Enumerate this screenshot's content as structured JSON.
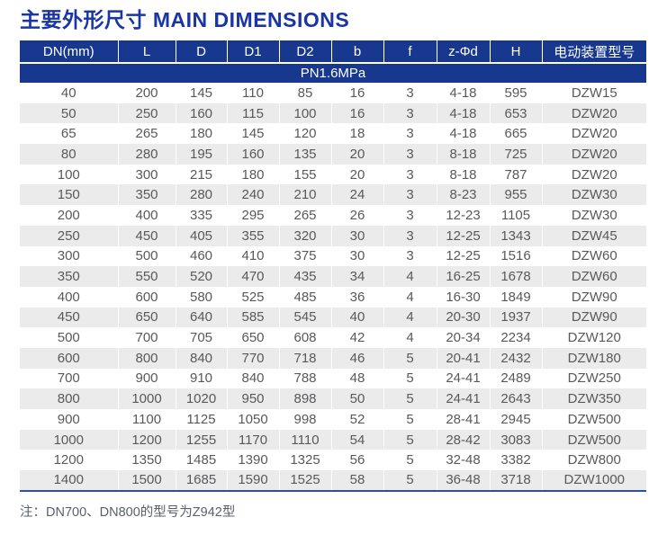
{
  "page": {
    "title": "主要外形尺寸 MAIN DIMENSIONS",
    "note": "注：DN700、DN800的型号为Z942型"
  },
  "table": {
    "columns": [
      "DN(mm)",
      "L",
      "D",
      "D1",
      "D2",
      "b",
      "f",
      "z-Φd",
      "H",
      "电动装置型号"
    ],
    "subheader": "PN1.6MPa",
    "rows": [
      [
        "40",
        "200",
        "145",
        "110",
        "85",
        "16",
        "3",
        "4-18",
        "595",
        "DZW15"
      ],
      [
        "50",
        "250",
        "160",
        "115",
        "100",
        "16",
        "3",
        "4-18",
        "653",
        "DZW20"
      ],
      [
        "65",
        "265",
        "180",
        "145",
        "120",
        "18",
        "3",
        "4-18",
        "665",
        "DZW20"
      ],
      [
        "80",
        "280",
        "195",
        "160",
        "135",
        "20",
        "3",
        "8-18",
        "725",
        "DZW20"
      ],
      [
        "100",
        "300",
        "215",
        "180",
        "155",
        "20",
        "3",
        "8-18",
        "787",
        "DZW20"
      ],
      [
        "150",
        "350",
        "280",
        "240",
        "210",
        "24",
        "3",
        "8-23",
        "955",
        "DZW30"
      ],
      [
        "200",
        "400",
        "335",
        "295",
        "265",
        "26",
        "3",
        "12-23",
        "1105",
        "DZW30"
      ],
      [
        "250",
        "450",
        "405",
        "355",
        "320",
        "30",
        "3",
        "12-25",
        "1343",
        "DZW45"
      ],
      [
        "300",
        "500",
        "460",
        "410",
        "375",
        "30",
        "3",
        "12-25",
        "1516",
        "DZW60"
      ],
      [
        "350",
        "550",
        "520",
        "470",
        "435",
        "34",
        "4",
        "16-25",
        "1678",
        "DZW60"
      ],
      [
        "400",
        "600",
        "580",
        "525",
        "485",
        "36",
        "4",
        "16-30",
        "1849",
        "DZW90"
      ],
      [
        "450",
        "650",
        "640",
        "585",
        "545",
        "40",
        "4",
        "20-30",
        "1937",
        "DZW90"
      ],
      [
        "500",
        "700",
        "705",
        "650",
        "608",
        "42",
        "4",
        "20-34",
        "2234",
        "DZW120"
      ],
      [
        "600",
        "800",
        "840",
        "770",
        "718",
        "46",
        "5",
        "20-41",
        "2432",
        "DZW180"
      ],
      [
        "700",
        "900",
        "910",
        "840",
        "788",
        "48",
        "5",
        "24-41",
        "2489",
        "DZW250"
      ],
      [
        "800",
        "1000",
        "1020",
        "950",
        "898",
        "50",
        "5",
        "24-41",
        "2643",
        "DZW350"
      ],
      [
        "900",
        "1100",
        "1125",
        "1050",
        "998",
        "52",
        "5",
        "28-41",
        "2945",
        "DZW500"
      ],
      [
        "1000",
        "1200",
        "1255",
        "1170",
        "1110",
        "54",
        "5",
        "28-42",
        "3083",
        "DZW500"
      ],
      [
        "1200",
        "1350",
        "1485",
        "1390",
        "1325",
        "56",
        "5",
        "32-48",
        "3382",
        "DZW800"
      ],
      [
        "1400",
        "1500",
        "1685",
        "1590",
        "1525",
        "58",
        "5",
        "36-48",
        "3718",
        "DZW1000"
      ]
    ]
  },
  "colors": {
    "header_bg": "#17388e",
    "title_text": "#1a35a5",
    "row_alt_bg": "#ebebec",
    "body_text": "#58595b",
    "bottom_border": "#2b4db4",
    "note_text": "#5a5f6b"
  }
}
